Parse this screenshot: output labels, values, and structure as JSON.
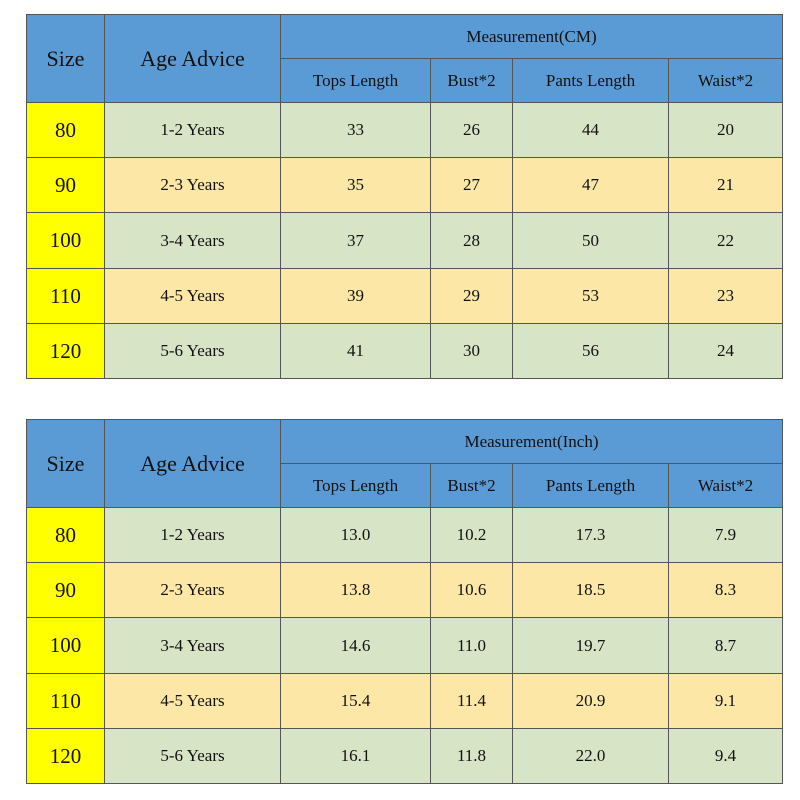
{
  "tables": [
    {
      "headers": {
        "size": "Size",
        "age": "Age Advice",
        "group": "Measurement(CM)",
        "columns": [
          "Tops Length",
          "Bust*2",
          "Pants Length",
          "Waist*2"
        ]
      },
      "rows": [
        [
          "80",
          "1-2 Years",
          "33",
          "26",
          "44",
          "20"
        ],
        [
          "90",
          "2-3 Years",
          "35",
          "27",
          "47",
          "21"
        ],
        [
          "100",
          "3-4 Years",
          "37",
          "28",
          "50",
          "22"
        ],
        [
          "110",
          "4-5 Years",
          "39",
          "29",
          "53",
          "23"
        ],
        [
          "120",
          "5-6 Years",
          "41",
          "30",
          "56",
          "24"
        ]
      ]
    },
    {
      "headers": {
        "size": "Size",
        "age": "Age Advice",
        "group": "Measurement(Inch)",
        "columns": [
          "Tops Length",
          "Bust*2",
          "Pants Length",
          "Waist*2"
        ]
      },
      "rows": [
        [
          "80",
          "1-2 Years",
          "13.0",
          "10.2",
          "17.3",
          "7.9"
        ],
        [
          "90",
          "2-3 Years",
          "13.8",
          "10.6",
          "18.5",
          "8.3"
        ],
        [
          "100",
          "3-4 Years",
          "14.6",
          "11.0",
          "19.7",
          "8.7"
        ],
        [
          "110",
          "4-5 Years",
          "15.4",
          "11.4",
          "20.9",
          "9.1"
        ],
        [
          "120",
          "5-6 Years",
          "16.1",
          "11.8",
          "22.0",
          "9.4"
        ]
      ]
    }
  ]
}
